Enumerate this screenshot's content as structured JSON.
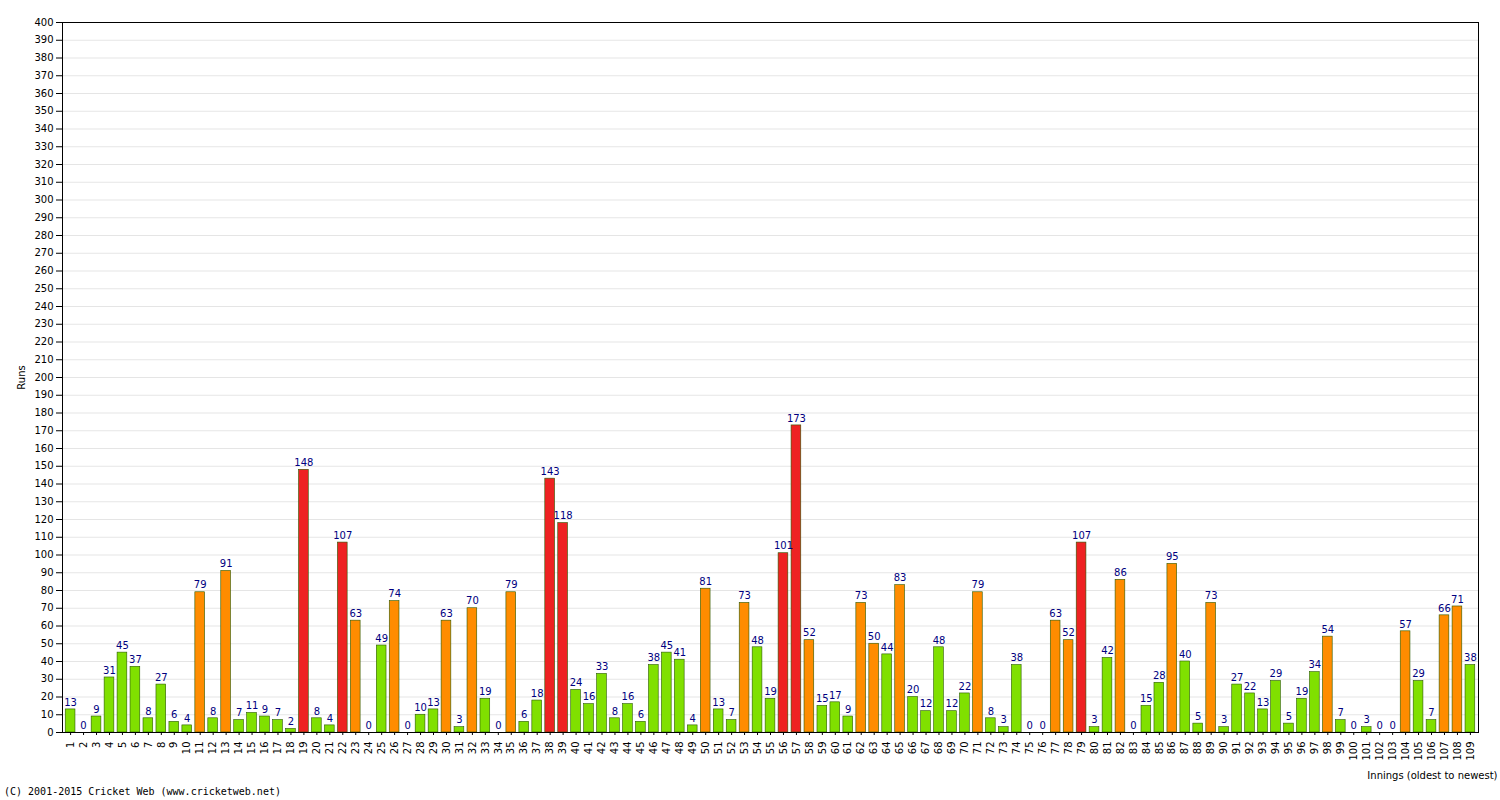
{
  "chart_data": {
    "type": "bar",
    "caption": "(C) 2001-2015 Cricket Web (www.cricketweb.net)",
    "x_label": "Innings (oldest to newest)",
    "y_label": "Runs",
    "categories": [
      "1",
      "2",
      "3",
      "4",
      "5",
      "6",
      "7",
      "8",
      "9",
      "10",
      "11",
      "12",
      "13",
      "14",
      "15",
      "16",
      "17",
      "18",
      "19",
      "20",
      "21",
      "22",
      "23",
      "24",
      "25",
      "26",
      "27",
      "28",
      "29",
      "30",
      "31",
      "32",
      "33",
      "34",
      "35",
      "36",
      "37",
      "38",
      "39",
      "40",
      "41",
      "42",
      "43",
      "44",
      "45",
      "46",
      "47",
      "48",
      "49",
      "50",
      "51",
      "52",
      "53",
      "54",
      "55",
      "56",
      "57",
      "58",
      "59",
      "60",
      "61",
      "62",
      "63",
      "64",
      "65",
      "66",
      "67",
      "68",
      "69",
      "70",
      "71",
      "72",
      "73",
      "74",
      "75",
      "76",
      "77",
      "78",
      "79",
      "80",
      "81",
      "82",
      "83",
      "84",
      "85",
      "86",
      "87",
      "88",
      "89",
      "90",
      "91",
      "92",
      "93",
      "94",
      "95",
      "96",
      "97",
      "98",
      "99",
      "100",
      "101",
      "102",
      "103",
      "104",
      "105",
      "106",
      "107",
      "108",
      "109"
    ],
    "values": [
      13,
      0,
      9,
      31,
      45,
      37,
      8,
      27,
      6,
      4,
      79,
      8,
      91,
      7,
      11,
      9,
      7,
      2,
      148,
      8,
      4,
      107,
      63,
      0,
      49,
      74,
      0,
      10,
      13,
      63,
      3,
      70,
      19,
      0,
      79,
      6,
      18,
      143,
      118,
      24,
      16,
      33,
      8,
      16,
      6,
      38,
      45,
      41,
      4,
      81,
      13,
      7,
      73,
      48,
      19,
      101,
      173,
      52,
      15,
      17,
      9,
      73,
      50,
      44,
      83,
      20,
      12,
      48,
      12,
      22,
      79,
      8,
      3,
      38,
      0,
      0,
      63,
      52,
      107,
      3,
      42,
      86,
      0,
      15,
      28,
      95,
      40,
      5,
      73,
      3,
      27,
      22,
      13,
      29,
      5,
      19,
      34,
      54,
      7,
      0,
      3,
      0,
      0,
      57,
      29,
      7,
      66,
      71,
      38
    ],
    "colors": [
      "#80e000",
      "#80e000",
      "#80e000",
      "#80e000",
      "#80e000",
      "#80e000",
      "#80e000",
      "#80e000",
      "#80e000",
      "#80e000",
      "#ff8c00",
      "#80e000",
      "#ff8c00",
      "#80e000",
      "#80e000",
      "#80e000",
      "#80e000",
      "#80e000",
      "#ee2222",
      "#80e000",
      "#80e000",
      "#ee2222",
      "#ff8c00",
      "#80e000",
      "#80e000",
      "#ff8c00",
      "#80e000",
      "#80e000",
      "#80e000",
      "#ff8c00",
      "#80e000",
      "#ff8c00",
      "#80e000",
      "#80e000",
      "#ff8c00",
      "#80e000",
      "#80e000",
      "#ee2222",
      "#ee2222",
      "#80e000",
      "#80e000",
      "#80e000",
      "#80e000",
      "#80e000",
      "#80e000",
      "#80e000",
      "#80e000",
      "#80e000",
      "#80e000",
      "#ff8c00",
      "#80e000",
      "#80e000",
      "#ff8c00",
      "#80e000",
      "#80e000",
      "#ee2222",
      "#ee2222",
      "#ff8c00",
      "#80e000",
      "#80e000",
      "#80e000",
      "#ff8c00",
      "#ff8c00",
      "#80e000",
      "#ff8c00",
      "#80e000",
      "#80e000",
      "#80e000",
      "#80e000",
      "#80e000",
      "#ff8c00",
      "#80e000",
      "#80e000",
      "#80e000",
      "#80e000",
      "#80e000",
      "#ff8c00",
      "#ff8c00",
      "#ee2222",
      "#80e000",
      "#80e000",
      "#ff8c00",
      "#80e000",
      "#80e000",
      "#80e000",
      "#ff8c00",
      "#80e000",
      "#80e000",
      "#ff8c00",
      "#80e000",
      "#80e000",
      "#80e000",
      "#80e000",
      "#80e000",
      "#80e000",
      "#80e000",
      "#80e000",
      "#ff8c00",
      "#80e000",
      "#80e000",
      "#80e000",
      "#80e000",
      "#80e000",
      "#ff8c00",
      "#80e000",
      "#80e000",
      "#ff8c00",
      "#ff8c00",
      "#80e000"
    ],
    "ylim": [
      0,
      400
    ],
    "yticks": [
      0,
      10,
      20,
      30,
      40,
      50,
      60,
      70,
      80,
      90,
      100,
      110,
      120,
      130,
      140,
      150,
      160,
      170,
      180,
      190,
      200,
      210,
      220,
      230,
      240,
      250,
      260,
      270,
      280,
      290,
      300,
      310,
      320,
      330,
      340,
      350,
      360,
      370,
      380,
      390,
      400
    ],
    "grid": true,
    "data_labels": true
  }
}
